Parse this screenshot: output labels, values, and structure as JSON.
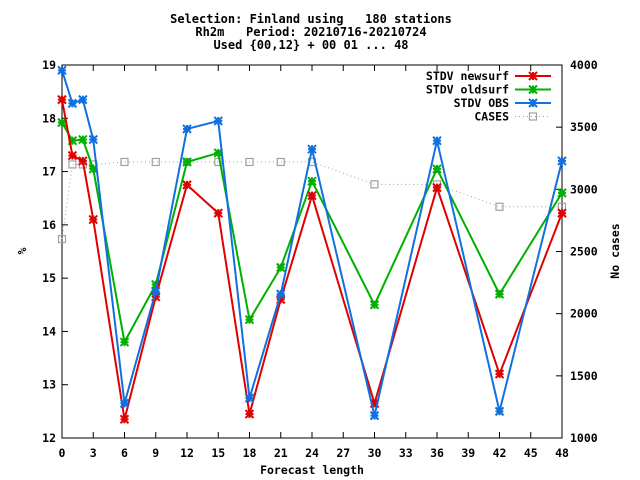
{
  "chart_data": {
    "type": "line",
    "title_lines": [
      "Selection: Finland using   180 stations",
      "Rh2m   Period: 20210716-20210724",
      "Used {00,12} + 00 01 ... 48"
    ],
    "xlabel": "Forecast length",
    "ylabel": "%",
    "y2label": "No cases",
    "xlim": [
      0,
      48
    ],
    "ylim": [
      12,
      19
    ],
    "y2lim": [
      1000,
      4000
    ],
    "xticks": [
      0,
      3,
      6,
      9,
      12,
      15,
      18,
      21,
      24,
      27,
      30,
      33,
      36,
      39,
      42,
      45,
      48
    ],
    "yticks": [
      12,
      13,
      14,
      15,
      16,
      17,
      18,
      19
    ],
    "y2ticks": [
      1000,
      1500,
      2000,
      2500,
      3000,
      3500,
      4000
    ],
    "legend_position": "top-right",
    "series": [
      {
        "name": "STDV newsurf",
        "color": "#e00000",
        "marker": "x-star",
        "axis": "y1",
        "x": [
          0,
          1,
          2,
          3,
          6,
          9,
          12,
          15,
          18,
          21,
          24,
          30,
          36,
          42,
          48
        ],
        "values": [
          18.35,
          17.3,
          17.2,
          16.1,
          12.35,
          14.65,
          16.75,
          16.22,
          12.45,
          14.6,
          16.55,
          12.65,
          16.7,
          13.2,
          16.22
        ]
      },
      {
        "name": "STDV oldsurf",
        "color": "#00b000",
        "marker": "x-star",
        "axis": "y1",
        "x": [
          0,
          1,
          2,
          3,
          6,
          9,
          12,
          15,
          18,
          21,
          24,
          30,
          36,
          42,
          48
        ],
        "values": [
          17.92,
          17.58,
          17.6,
          17.05,
          13.8,
          14.88,
          17.18,
          17.35,
          14.22,
          15.2,
          16.82,
          14.5,
          17.05,
          14.7,
          16.6
        ]
      },
      {
        "name": "STDV OBS",
        "color": "#1070e0",
        "marker": "x-star",
        "axis": "y1",
        "x": [
          0,
          1,
          2,
          3,
          6,
          9,
          12,
          15,
          18,
          21,
          24,
          30,
          36,
          42,
          48
        ],
        "values": [
          18.9,
          18.28,
          18.35,
          17.6,
          12.65,
          14.75,
          17.8,
          17.95,
          12.75,
          14.7,
          17.42,
          12.42,
          17.58,
          12.5,
          17.2
        ]
      },
      {
        "name": "CASES",
        "color": "#a0a0a0",
        "marker": "square",
        "axis": "y2",
        "dotted": true,
        "x": [
          0,
          1,
          2,
          3,
          6,
          9,
          12,
          15,
          18,
          21,
          24,
          30,
          36,
          42,
          48
        ],
        "values": [
          2600,
          3200,
          3200,
          3200,
          3220,
          3220,
          3220,
          3220,
          3220,
          3220,
          3220,
          3040,
          3040,
          2860,
          2860
        ]
      }
    ]
  }
}
